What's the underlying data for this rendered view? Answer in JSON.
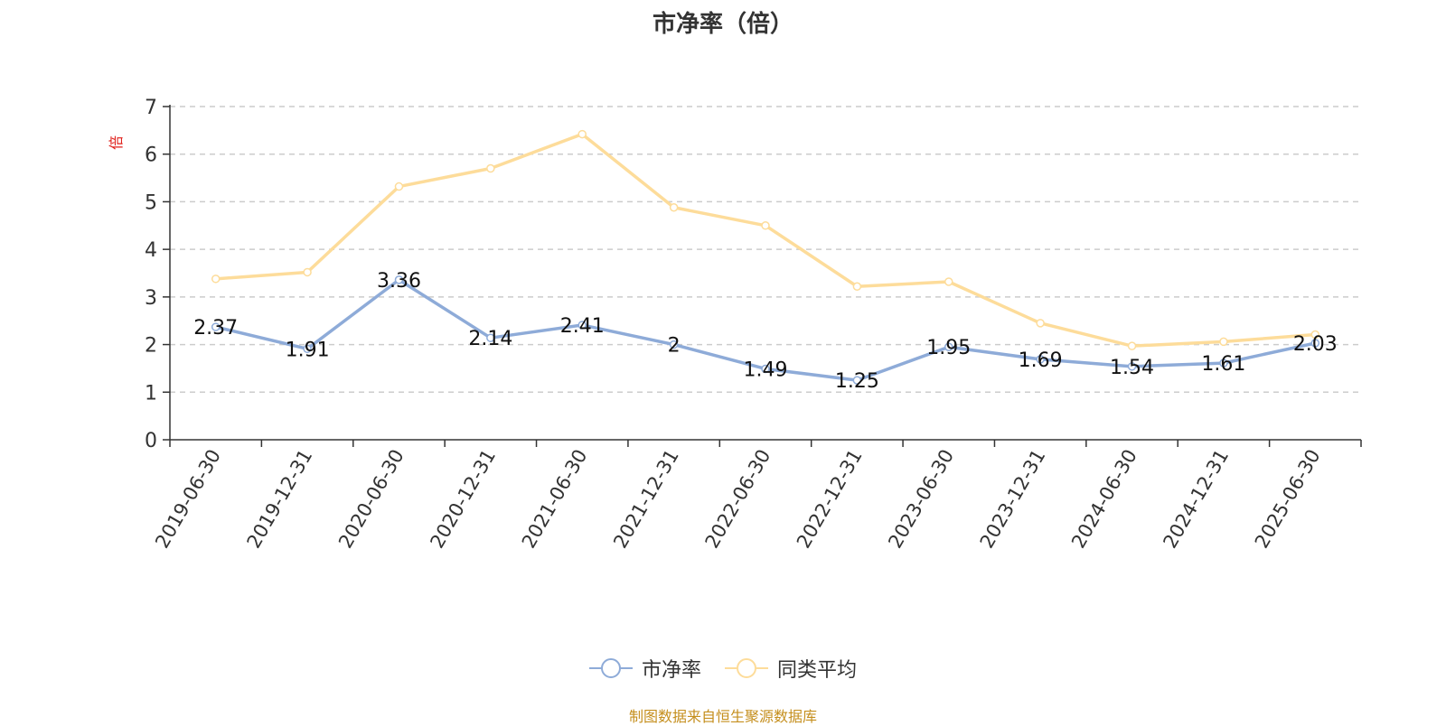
{
  "chart_data": {
    "type": "line",
    "title": "市净率（倍）",
    "ylabel": "倍",
    "xlabel": "",
    "ylim": [
      0,
      7
    ],
    "yticks": [
      0,
      1,
      2,
      3,
      4,
      5,
      6,
      7
    ],
    "grid": true,
    "legend_position": "bottom",
    "categories": [
      "2019-06-30",
      "2019-12-31",
      "2020-06-30",
      "2020-12-31",
      "2021-06-30",
      "2021-12-31",
      "2022-06-30",
      "2022-12-31",
      "2023-06-30",
      "2023-12-31",
      "2024-06-30",
      "2024-12-31",
      "2025-06-30"
    ],
    "series": [
      {
        "name": "市净率",
        "color": "#8eabd8",
        "values": [
          2.37,
          1.91,
          3.36,
          2.14,
          2.41,
          2,
          1.49,
          1.25,
          1.95,
          1.69,
          1.54,
          1.61,
          2.03
        ],
        "data_labels": [
          "2.37",
          "1.91",
          "3.36",
          "2.14",
          "2.41",
          "2",
          "1.49",
          "1.25",
          "1.95",
          "1.69",
          "1.54",
          "1.61",
          "2.03"
        ]
      },
      {
        "name": "同类平均",
        "color": "#fddc9a",
        "values": [
          3.38,
          3.52,
          5.32,
          5.7,
          6.42,
          4.88,
          4.5,
          3.22,
          3.32,
          2.45,
          1.97,
          2.06,
          2.21
        ]
      }
    ],
    "source": "制图数据来自恒生聚源数据库"
  }
}
